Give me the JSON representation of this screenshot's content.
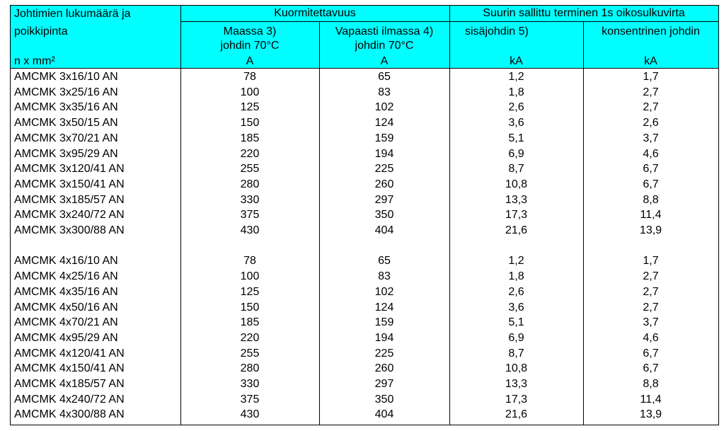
{
  "header": {
    "col1_line1": "Johtimien lukumäärä ja",
    "col1_line2": "poikkipinta",
    "col1_unit": "n x mm²",
    "group1_title": "Kuormitettavuus",
    "group2_title": "Suurin sallittu terminen 1s oikosulkuvirta",
    "col2_line1": "Maassa   3)",
    "col2_line2": "johdin 70°C",
    "col2_unit": "A",
    "col3_line1": "Vapaasti ilmassa 4)",
    "col3_line2": "johdin 70°C",
    "col3_unit": "A",
    "col4_line1": "sisäjohdin  5)",
    "col4_unit": "kA",
    "col5_line1": "konsentrinen johdin",
    "col5_unit": "kA"
  },
  "rows": [
    [
      "AMCMK 3x16/10 AN",
      "78",
      "65",
      "1,2",
      "1,7"
    ],
    [
      "AMCMK 3x25/16 AN",
      "100",
      "83",
      "1,8",
      "2,7"
    ],
    [
      "AMCMK 3x35/16 AN",
      "125",
      "102",
      "2,6",
      "2,7"
    ],
    [
      "AMCMK 3x50/15 AN",
      "150",
      "124",
      "3,6",
      "2,6"
    ],
    [
      "AMCMK 3x70/21 AN",
      "185",
      "159",
      "5,1",
      "3,7"
    ],
    [
      "AMCMK 3x95/29 AN",
      "220",
      "194",
      "6,9",
      "4,6"
    ],
    [
      "AMCMK 3x120/41 AN",
      "255",
      "225",
      "8,7",
      "6,7"
    ],
    [
      "AMCMK 3x150/41 AN",
      "280",
      "260",
      "10,8",
      "6,7"
    ],
    [
      "AMCMK 3x185/57 AN",
      "330",
      "297",
      "13,3",
      "8,8"
    ],
    [
      "AMCMK 3x240/72 AN",
      "375",
      "350",
      "17,3",
      "11,4"
    ],
    [
      "AMCMK 3x300/88 AN",
      "430",
      "404",
      "21,6",
      "13,9"
    ],
    [
      "",
      "",
      "",
      "",
      ""
    ],
    [
      "AMCMK 4x16/10 AN",
      "78",
      "65",
      "1,2",
      "1,7"
    ],
    [
      "AMCMK 4x25/16 AN",
      "100",
      "83",
      "1,8",
      "2,7"
    ],
    [
      "AMCMK 4x35/16 AN",
      "125",
      "102",
      "2,6",
      "2,7"
    ],
    [
      "AMCMK 4x50/16 AN",
      "150",
      "124",
      "3,6",
      "2,7"
    ],
    [
      "AMCMK 4x70/21 AN",
      "185",
      "159",
      "5,1",
      "3,7"
    ],
    [
      "AMCMK 4x95/29 AN",
      "220",
      "194",
      "6,9",
      "4,6"
    ],
    [
      "AMCMK 4x120/41 AN",
      "255",
      "225",
      "8,7",
      "6,7"
    ],
    [
      "AMCMK 4x150/41 AN",
      "280",
      "260",
      "10,8",
      "6,7"
    ],
    [
      "AMCMK 4x185/57 AN",
      "330",
      "297",
      "13,3",
      "8,8"
    ],
    [
      "AMCMK 4x240/72 AN",
      "375",
      "350",
      "17,3",
      "11,4"
    ],
    [
      "AMCMK 4x300/88 AN",
      "430",
      "404",
      "21,6",
      "13,9"
    ]
  ],
  "colors": {
    "header_bg": "#00ffff",
    "grid": "#000000"
  }
}
